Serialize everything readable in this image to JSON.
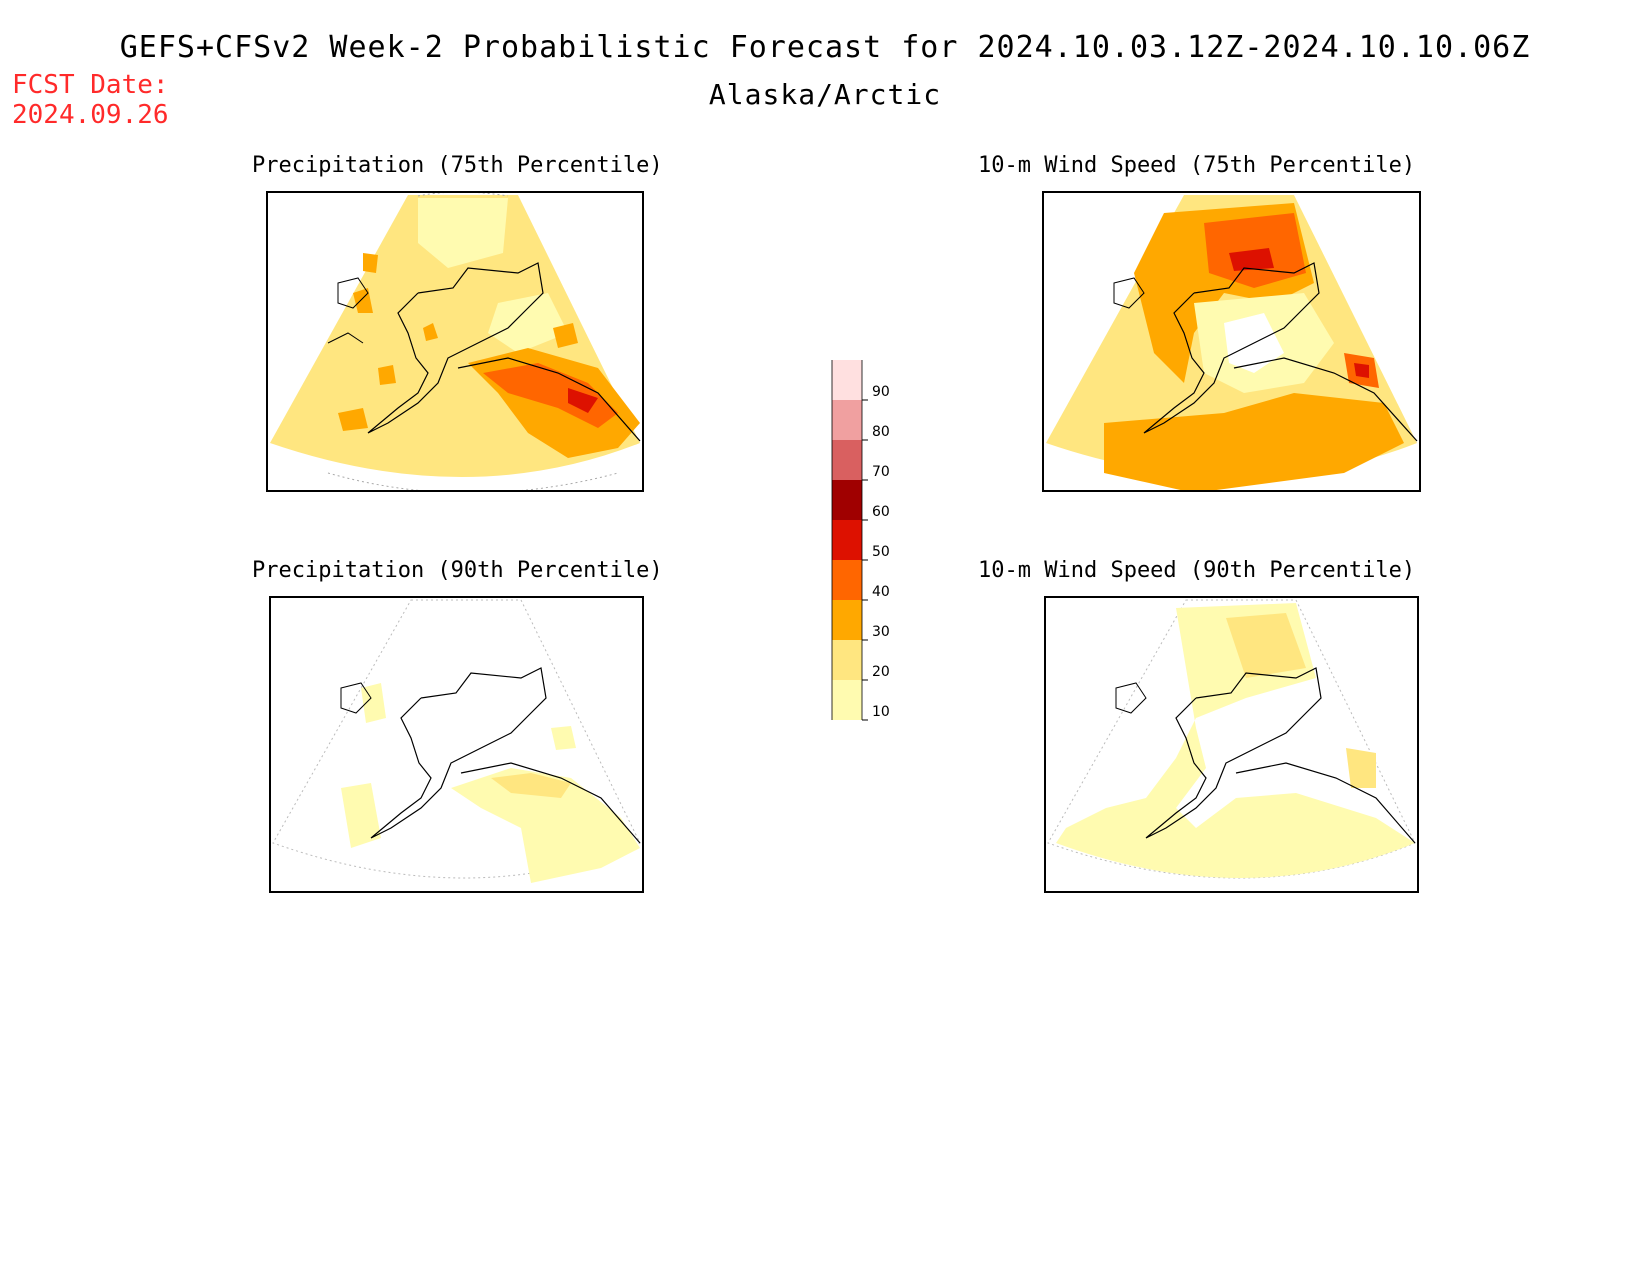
{
  "header": {
    "title": "GEFS+CFSv2 Week-2 Probabilistic Forecast for 2024.10.03.12Z-2024.10.10.06Z",
    "region": "Alaska/Arctic",
    "fcst_label": "FCST Date:",
    "fcst_date": "2024.09.26"
  },
  "panels": [
    {
      "title": "Precipitation (75th Percentile)",
      "variable": "precipitation",
      "percentile": 75
    },
    {
      "title": "10-m Wind Speed (75th Percentile)",
      "variable": "wind_speed",
      "percentile": 75
    },
    {
      "title": "Precipitation (90th Percentile)",
      "variable": "precipitation",
      "percentile": 90
    },
    {
      "title": "10-m Wind Speed (90th Percentile)",
      "variable": "wind_speed",
      "percentile": 90
    }
  ],
  "colorbar": {
    "levels": [
      "10",
      "20",
      "30",
      "40",
      "50",
      "60",
      "70",
      "80",
      "90"
    ],
    "colors": [
      "#fffbb0",
      "#ffe680",
      "#ffa800",
      "#ff6600",
      "#dd1100",
      "#a00000",
      "#d96060",
      "#f0a0a0",
      "#ffe0e0"
    ]
  }
}
